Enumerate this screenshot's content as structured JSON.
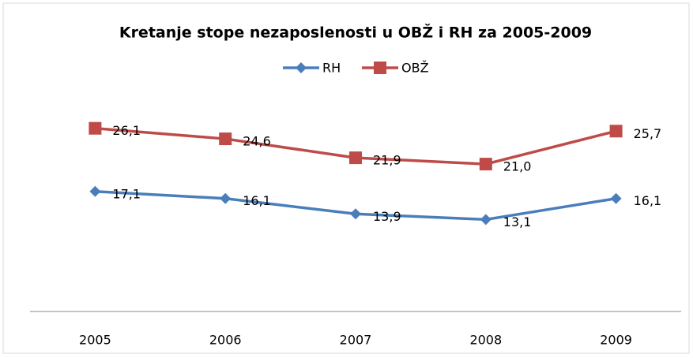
{
  "chart_data": {
    "type": "line",
    "title": "Kretanje stope nezaposlenosti u OBŽ i RH za 2005-2009",
    "categories": [
      "2005",
      "2006",
      "2007",
      "2008",
      "2009"
    ],
    "series": [
      {
        "name": "RH",
        "color": "#4a7ebb",
        "marker": "diamond",
        "values": [
          17.1,
          16.1,
          13.9,
          13.1,
          16.1
        ],
        "value_labels": [
          "17,1",
          "16,1",
          "13,9",
          "13,1",
          "16,1"
        ]
      },
      {
        "name": "OBŽ",
        "color": "#be4b48",
        "marker": "square",
        "values": [
          26.1,
          24.6,
          21.9,
          21.0,
          25.7
        ],
        "value_labels": [
          "26,1",
          "24,6",
          "21,9",
          "21,0",
          "25,7"
        ]
      }
    ],
    "ylim": [
      0,
      30
    ],
    "legend": "top"
  }
}
